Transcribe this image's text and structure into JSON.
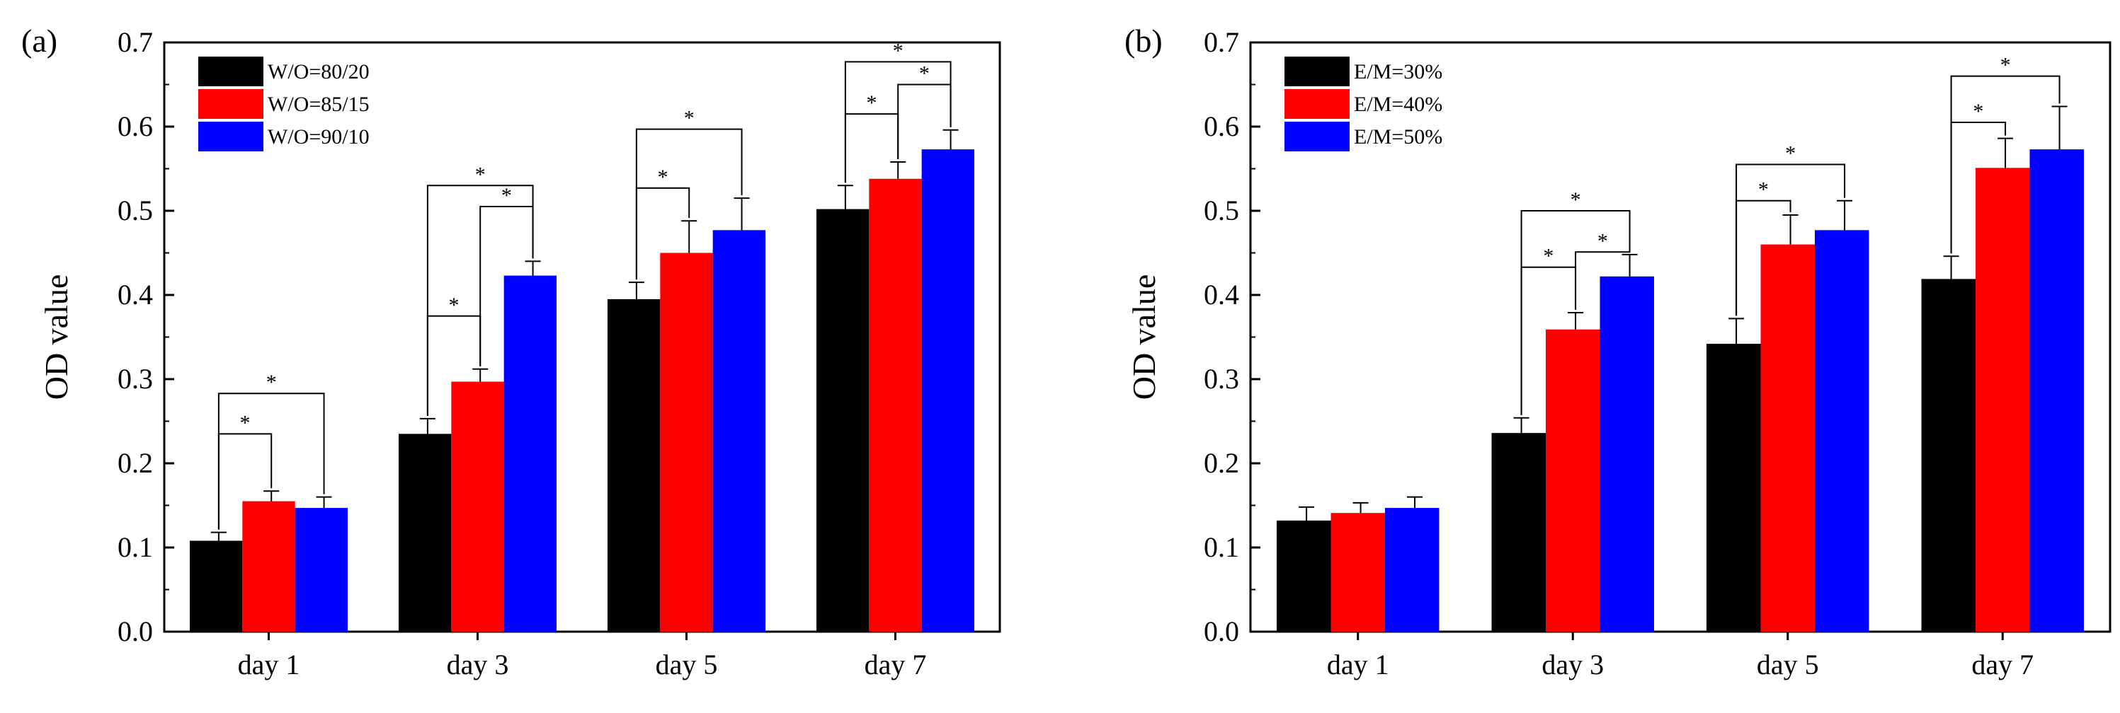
{
  "chart_data": [
    {
      "type": "bar",
      "panel_label": "(a)",
      "ylabel": "OD value",
      "xlabel": "",
      "ylim": [
        0.0,
        0.7
      ],
      "yticks": [
        "0.0",
        "0.1",
        "0.2",
        "0.3",
        "0.4",
        "0.5",
        "0.6",
        "0.7"
      ],
      "categories": [
        "day 1",
        "day 3",
        "day 5",
        "day 7"
      ],
      "legend_position": "top-left",
      "series": [
        {
          "name": "W/O=80/20",
          "color": "#000000",
          "values": [
            0.108,
            0.235,
            0.395,
            0.502
          ],
          "errors": [
            0.01,
            0.018,
            0.02,
            0.028
          ]
        },
        {
          "name": "W/O=85/15",
          "color": "#ff0000",
          "values": [
            0.155,
            0.297,
            0.45,
            0.538
          ],
          "errors": [
            0.012,
            0.015,
            0.038,
            0.02
          ]
        },
        {
          "name": "W/O=90/10",
          "color": "#0000ff",
          "values": [
            0.147,
            0.423,
            0.477,
            0.573
          ],
          "errors": [
            0.013,
            0.017,
            0.038,
            0.023
          ]
        }
      ],
      "significance": [
        {
          "category": 0,
          "from": 0,
          "to": 2,
          "level": 0.283,
          "label": "*"
        },
        {
          "category": 0,
          "from": 0,
          "to": 1,
          "level": 0.235,
          "label": "*"
        },
        {
          "category": 1,
          "from": 0,
          "to": 2,
          "level": 0.53,
          "label": "*"
        },
        {
          "category": 1,
          "from": 0,
          "to": 1,
          "level": 0.375,
          "label": "*"
        },
        {
          "category": 1,
          "from": 1,
          "to": 2,
          "level": 0.505,
          "label": "*"
        },
        {
          "category": 2,
          "from": 0,
          "to": 2,
          "level": 0.597,
          "label": "*"
        },
        {
          "category": 2,
          "from": 0,
          "to": 1,
          "level": 0.527,
          "label": "*"
        },
        {
          "category": 3,
          "from": 0,
          "to": 2,
          "level": 0.677,
          "label": "*"
        },
        {
          "category": 3,
          "from": 0,
          "to": 1,
          "level": 0.615,
          "label": "*"
        },
        {
          "category": 3,
          "from": 1,
          "to": 2,
          "level": 0.65,
          "label": "*"
        }
      ]
    },
    {
      "type": "bar",
      "panel_label": "(b)",
      "ylabel": "OD value",
      "xlabel": "",
      "ylim": [
        0.0,
        0.7
      ],
      "yticks": [
        "0.0",
        "0.1",
        "0.2",
        "0.3",
        "0.4",
        "0.5",
        "0.6",
        "0.7"
      ],
      "categories": [
        "day 1",
        "day 3",
        "day 5",
        "day 7"
      ],
      "legend_position": "top-left",
      "series": [
        {
          "name": "E/M=30%",
          "color": "#000000",
          "values": [
            0.132,
            0.236,
            0.342,
            0.419
          ],
          "errors": [
            0.016,
            0.018,
            0.03,
            0.027
          ]
        },
        {
          "name": "E/M=40%",
          "color": "#ff0000",
          "values": [
            0.141,
            0.359,
            0.46,
            0.551
          ],
          "errors": [
            0.012,
            0.02,
            0.035,
            0.035
          ]
        },
        {
          "name": "E/M=50%",
          "color": "#0000ff",
          "values": [
            0.147,
            0.422,
            0.477,
            0.573
          ],
          "errors": [
            0.013,
            0.026,
            0.035,
            0.051
          ]
        }
      ],
      "significance": [
        {
          "category": 1,
          "from": 0,
          "to": 2,
          "level": 0.5,
          "label": "*"
        },
        {
          "category": 1,
          "from": 0,
          "to": 1,
          "level": 0.433,
          "label": "*"
        },
        {
          "category": 1,
          "from": 1,
          "to": 2,
          "level": 0.451,
          "label": "*"
        },
        {
          "category": 2,
          "from": 0,
          "to": 2,
          "level": 0.555,
          "label": "*"
        },
        {
          "category": 2,
          "from": 0,
          "to": 1,
          "level": 0.512,
          "label": "*"
        },
        {
          "category": 3,
          "from": 0,
          "to": 2,
          "level": 0.66,
          "label": "*"
        },
        {
          "category": 3,
          "from": 0,
          "to": 1,
          "level": 0.605,
          "label": "*"
        }
      ]
    }
  ]
}
